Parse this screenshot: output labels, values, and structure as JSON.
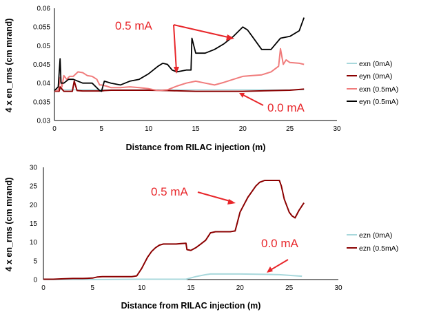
{
  "chart_data": [
    {
      "type": "line",
      "xlabel": "Distance from RILAC injection (m)",
      "ylabel": "4 x en_rms (cm mrand)",
      "xlim": [
        0,
        30
      ],
      "ylim": [
        0.03,
        0.06
      ],
      "xticks": [
        "0",
        "5",
        "10",
        "15",
        "20",
        "25",
        "30"
      ],
      "yticks": [
        "0.03",
        "0.035",
        "0.04",
        "0.045",
        "0.05",
        "0.055",
        "0.06"
      ],
      "grid": false,
      "legend": "right",
      "series": [
        {
          "name": "exn (0mA)",
          "color": "#a8d8dc",
          "x": [
            0,
            26.5
          ],
          "y": [
            0.0382,
            0.0382
          ]
        },
        {
          "name": "eyn (0mA)",
          "color": "#8b0000",
          "x": [
            0,
            0.5,
            0.6,
            1.0,
            1.5,
            1.9,
            2.1,
            2.4,
            3,
            5,
            5.3,
            6,
            10,
            12,
            15,
            20,
            25,
            26.5
          ],
          "y": [
            0.0378,
            0.0378,
            0.039,
            0.0378,
            0.0378,
            0.0378,
            0.0405,
            0.038,
            0.0379,
            0.0379,
            0.038,
            0.0381,
            0.0381,
            0.038,
            0.0378,
            0.0378,
            0.0381,
            0.0384
          ]
        },
        {
          "name": "exn (0.5mA)",
          "color": "#f07c7c",
          "x": [
            0,
            0.4,
            0.6,
            0.8,
            1,
            1.3,
            1.6,
            2,
            2.5,
            3,
            3.5,
            4,
            4.5,
            4.8,
            5,
            5.5,
            6,
            7,
            8,
            9,
            10,
            11,
            12,
            13,
            14,
            15,
            16,
            17,
            18,
            19,
            20,
            21,
            22,
            23,
            23.8,
            24,
            24.3,
            24.6,
            25,
            26,
            26.5
          ],
          "y": [
            0.038,
            0.038,
            0.0415,
            0.039,
            0.042,
            0.041,
            0.0418,
            0.0418,
            0.043,
            0.0428,
            0.042,
            0.0418,
            0.041,
            0.0395,
            0.0395,
            0.0392,
            0.0388,
            0.0388,
            0.039,
            0.0388,
            0.0385,
            0.038,
            0.0382,
            0.0392,
            0.04,
            0.0405,
            0.04,
            0.0395,
            0.0402,
            0.041,
            0.0418,
            0.042,
            0.0422,
            0.043,
            0.0445,
            0.0492,
            0.045,
            0.0462,
            0.0455,
            0.0453,
            0.045
          ]
        },
        {
          "name": "eyn (0.5mA)",
          "color": "#000000",
          "x": [
            0,
            0.4,
            0.6,
            0.7,
            1,
            1.5,
            2,
            3,
            4,
            4.8,
            5,
            5.3,
            6,
            7,
            8,
            9,
            10,
            11,
            11.5,
            12,
            12.5,
            13,
            14,
            14.5,
            14.6,
            15,
            16,
            17,
            18,
            19,
            20,
            20.5,
            21,
            22,
            23,
            24,
            25,
            26,
            26.5
          ],
          "y": [
            0.038,
            0.039,
            0.0465,
            0.04,
            0.04,
            0.041,
            0.041,
            0.04,
            0.04,
            0.038,
            0.0378,
            0.0405,
            0.04,
            0.0395,
            0.0405,
            0.041,
            0.0425,
            0.0445,
            0.0453,
            0.045,
            0.0435,
            0.043,
            0.0435,
            0.0435,
            0.052,
            0.048,
            0.048,
            0.049,
            0.0505,
            0.0525,
            0.055,
            0.0542,
            0.0525,
            0.049,
            0.049,
            0.052,
            0.0525,
            0.054,
            0.0575
          ]
        }
      ],
      "annotations": [
        {
          "text": "0.5 mA",
          "x": 14.8,
          "y": 0.0567
        },
        {
          "text": "0.0 mA",
          "x": 22.6,
          "y": 0.0354
        }
      ]
    },
    {
      "type": "line",
      "xlabel": "Distance from RILAC injection (m)",
      "ylabel": "4 x en_rms (cm mrand)",
      "xlim": [
        0,
        30
      ],
      "ylim": [
        0,
        30
      ],
      "xticks": [
        "0",
        "5",
        "10",
        "15",
        "20",
        "25",
        "30"
      ],
      "yticks": [
        "0",
        "5",
        "10",
        "15",
        "20",
        "25",
        "30"
      ],
      "grid": false,
      "legend": "right",
      "series": [
        {
          "name": "ezn (0mA)",
          "color": "#a8d8dc",
          "x": [
            0,
            5,
            10,
            14.5,
            15.5,
            16.5,
            17,
            20,
            22.5,
            24,
            26.3
          ],
          "y": [
            0,
            0,
            0.1,
            0.1,
            0.8,
            1.3,
            1.5,
            1.5,
            1.4,
            1.3,
            0.9
          ]
        },
        {
          "name": "ezn (0.5mA)",
          "color": "#8b0000",
          "x": [
            0,
            1,
            2,
            3,
            4,
            5,
            5.5,
            6,
            7,
            8,
            9,
            9.5,
            10,
            10.3,
            10.6,
            11,
            11.4,
            11.8,
            12.2,
            12.6,
            13,
            13.5,
            14,
            14.5,
            14.6,
            15,
            15.5,
            16,
            16.5,
            17,
            17.5,
            18,
            19,
            19.5,
            19.7,
            20,
            20.4,
            20.8,
            21.2,
            21.6,
            22,
            22.5,
            23,
            23.5,
            24,
            24.2,
            24.5,
            25,
            25.3,
            25.6,
            26,
            26.5
          ],
          "y": [
            0.1,
            0.1,
            0.2,
            0.3,
            0.3,
            0.4,
            0.7,
            0.8,
            0.8,
            0.8,
            0.8,
            1,
            3,
            4.5,
            6,
            7.5,
            8.5,
            9.2,
            9.5,
            9.5,
            9.5,
            9.5,
            9.6,
            9.7,
            8,
            7.8,
            8.5,
            9.5,
            10.5,
            12.5,
            12.8,
            12.8,
            12.8,
            13,
            15,
            18,
            20,
            22,
            23.5,
            25,
            26,
            26.5,
            26.5,
            26.5,
            26.5,
            25,
            21.5,
            18,
            17,
            16.5,
            18.5,
            20.5
          ]
        }
      ],
      "annotations": [
        {
          "text": "0.5 mA",
          "x": 11.0,
          "y": 21.5
        },
        {
          "text": "0.0 mA",
          "x": 22.3,
          "y": 6.5
        }
      ]
    }
  ]
}
